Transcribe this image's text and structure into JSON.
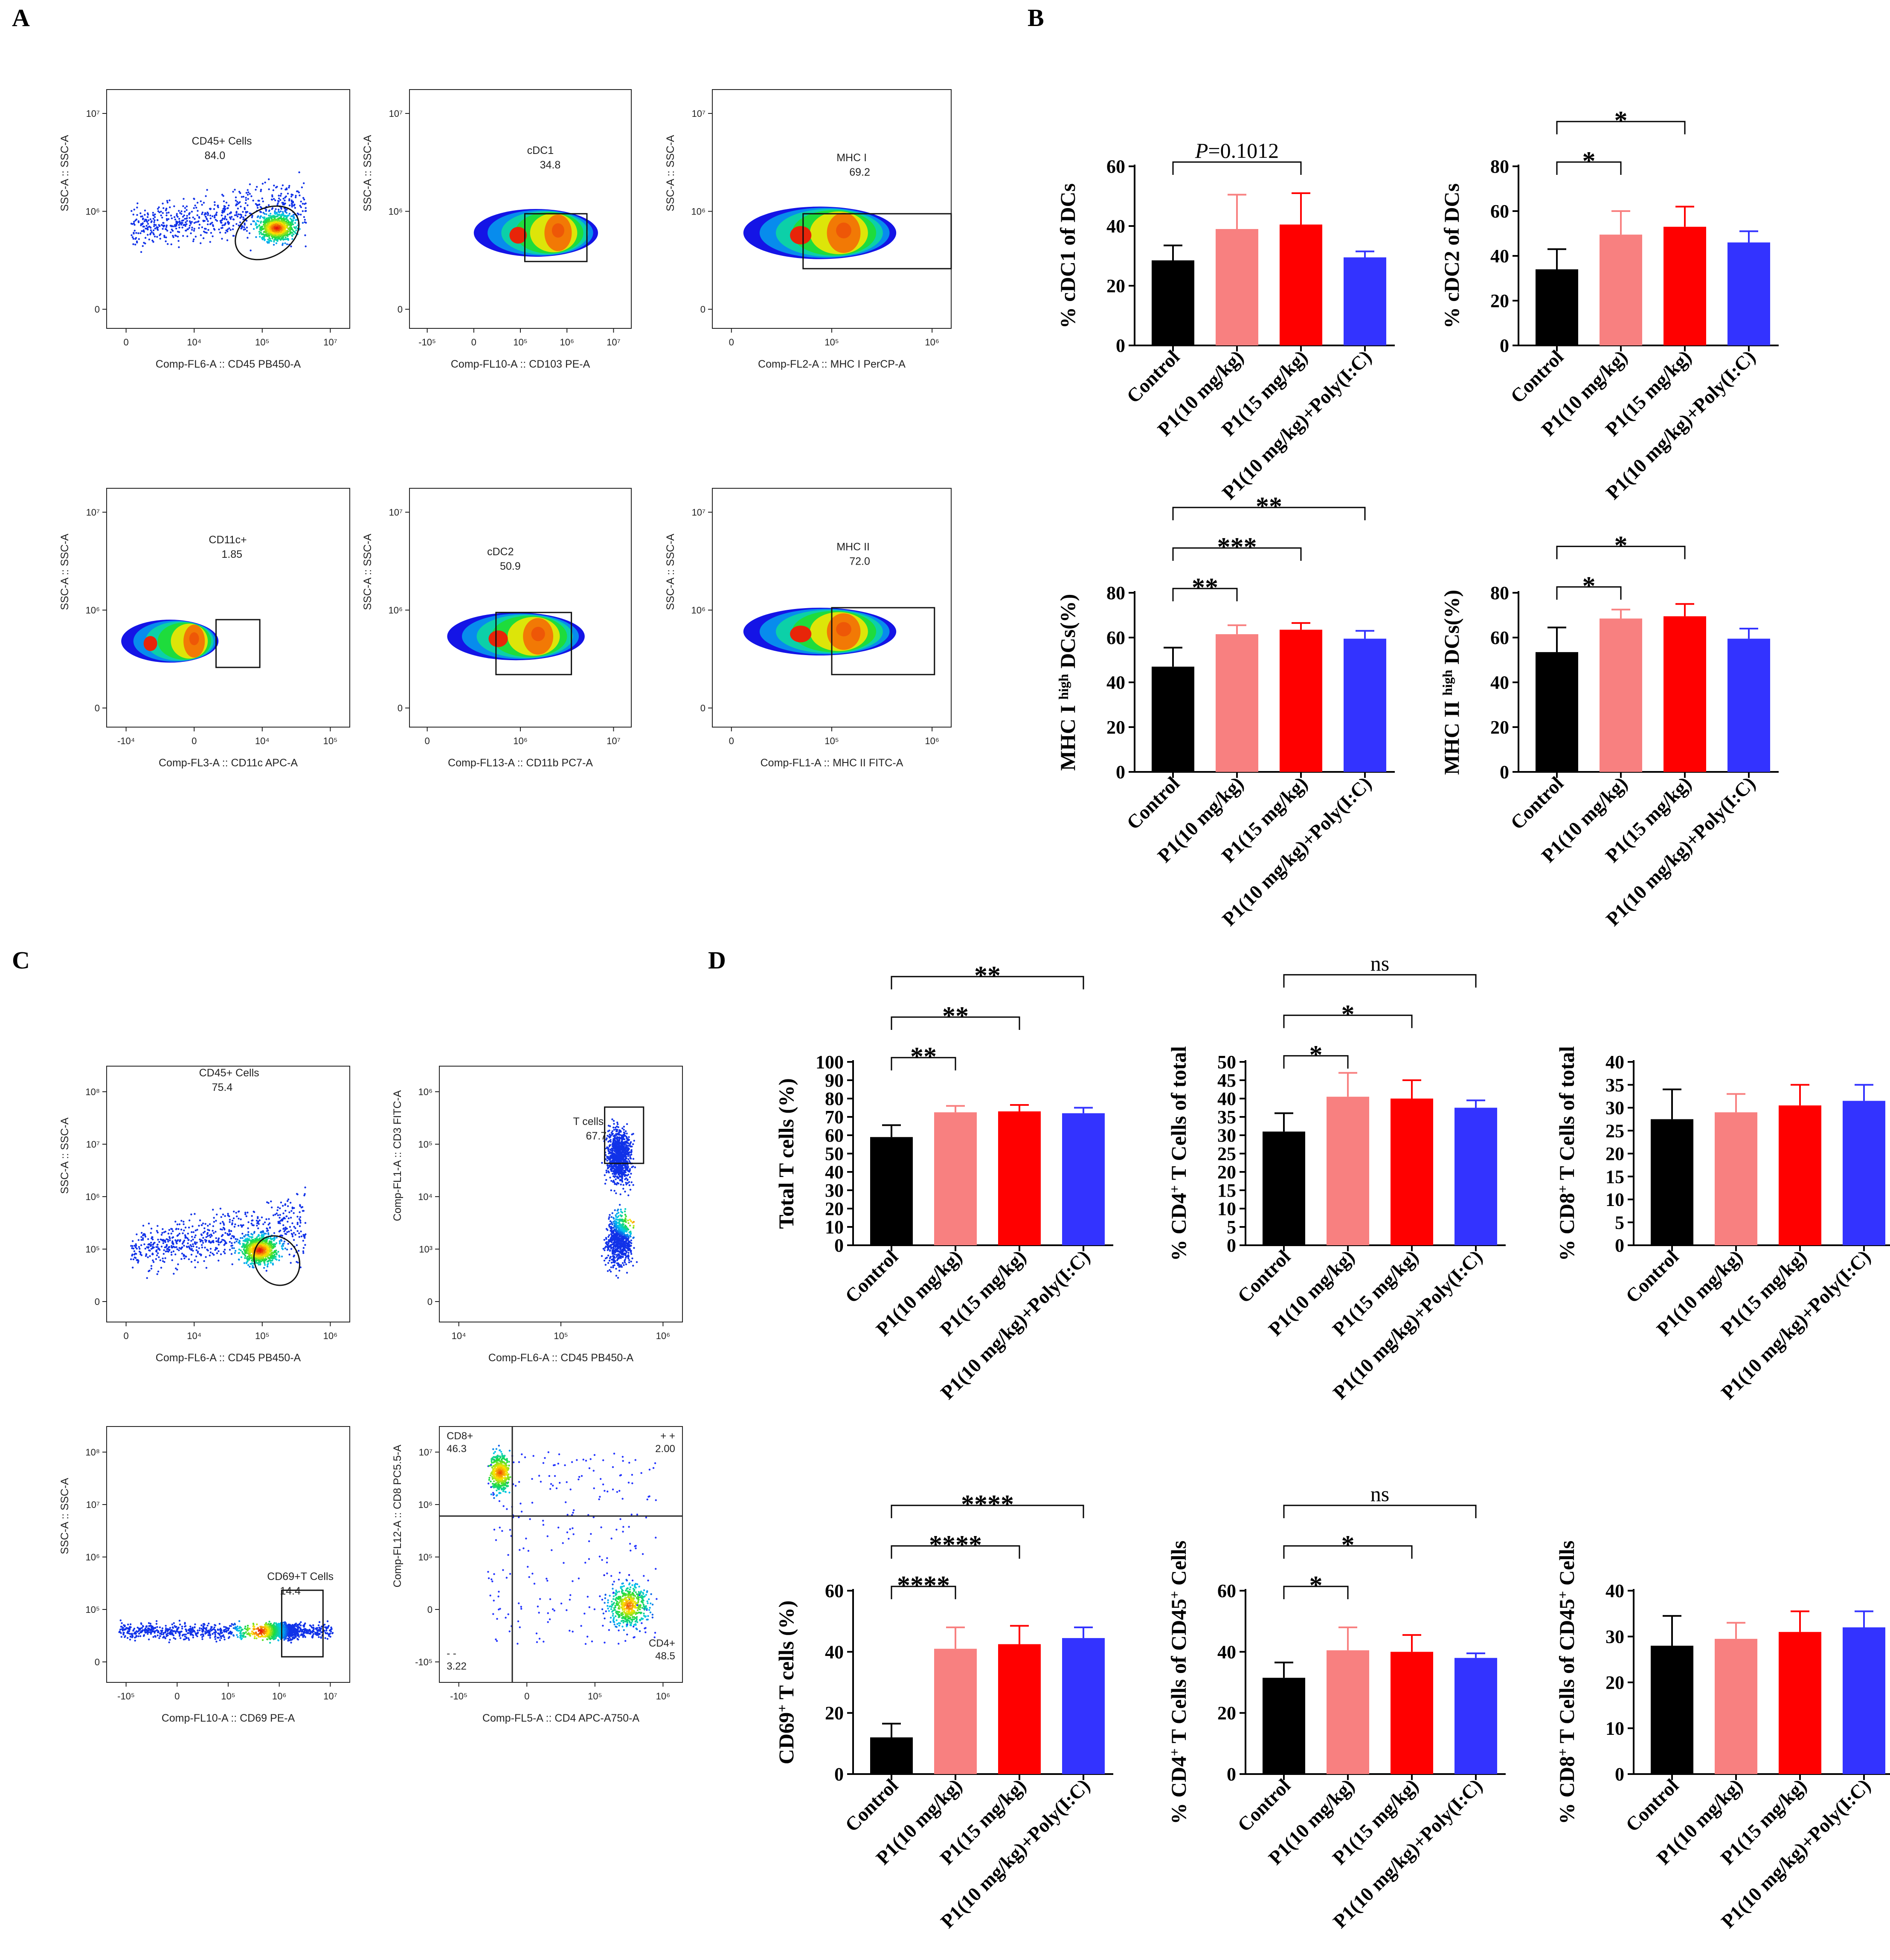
{
  "panels": {
    "a": "A",
    "b": "B",
    "c": "C",
    "d": "D"
  },
  "colors": {
    "control": "#000000",
    "p1_10": "#f88080",
    "p1_15": "#ff0000",
    "combo": "#3333ff"
  },
  "flow_panels": [
    {
      "id": "a1",
      "gate_label": "CD45+ Cells",
      "gate_value": "84.0",
      "xlabel": "Comp-FL6-A :: CD45 PB450-A",
      "ylabel": "SSC-A :: SSC-A",
      "xticks": [
        "0",
        "10⁴",
        "10⁵",
        "10⁷"
      ],
      "yticks": [
        "10⁷",
        "10⁶",
        "0"
      ]
    },
    {
      "id": "a2",
      "gate_label": "cDC1",
      "gate_value": "34.8",
      "xlabel": "Comp-FL10-A :: CD103 PE-A",
      "ylabel": "SSC-A :: SSC-A",
      "xticks": [
        "-10⁵",
        "0",
        "10⁵",
        "10⁶",
        "10⁷"
      ],
      "yticks": [
        "10⁷",
        "10⁶",
        "0"
      ]
    },
    {
      "id": "a3",
      "gate_label": "MHC I",
      "gate_value": "69.2",
      "xlabel": "Comp-FL2-A :: MHC I PerCP-A",
      "ylabel": "SSC-A :: SSC-A",
      "xticks": [
        "0",
        "10⁵",
        "10⁶"
      ],
      "yticks": [
        "10⁷",
        "10⁶",
        "0"
      ]
    },
    {
      "id": "a4",
      "gate_label": "CD11c+",
      "gate_value": "1.85",
      "xlabel": "Comp-FL3-A :: CD11c APC-A",
      "ylabel": "SSC-A :: SSC-A",
      "xticks": [
        "-10⁴",
        "0",
        "10⁴",
        "10⁵"
      ],
      "yticks": [
        "10⁷",
        "10⁶",
        "0"
      ]
    },
    {
      "id": "a5",
      "gate_label": "cDC2",
      "gate_value": "50.9",
      "xlabel": "Comp-FL13-A :: CD11b PC7-A",
      "ylabel": "SSC-A :: SSC-A",
      "xticks": [
        "0",
        "10⁶",
        "10⁷"
      ],
      "yticks": [
        "10⁷",
        "10⁶",
        "0"
      ]
    },
    {
      "id": "a6",
      "gate_label": "MHC II",
      "gate_value": "72.0",
      "xlabel": "Comp-FL1-A :: MHC II FITC-A",
      "ylabel": "SSC-A :: SSC-A",
      "xticks": [
        "0",
        "10⁵",
        "10⁶"
      ],
      "yticks": [
        "10⁷",
        "10⁶",
        "0"
      ]
    },
    {
      "id": "c1",
      "gate_label": "CD45+ Cells",
      "gate_value": "75.4",
      "xlabel": "Comp-FL6-A :: CD45 PB450-A",
      "ylabel": "SSC-A :: SSC-A",
      "xticks": [
        "0",
        "10⁴",
        "10⁵",
        "10⁶"
      ],
      "yticks": [
        "10⁸",
        "10⁷",
        "10⁶",
        "10⁵",
        "0"
      ]
    },
    {
      "id": "c2",
      "gate_label": "T cells",
      "gate_value": "67.7",
      "xlabel": "Comp-FL6-A :: CD45 PB450-A",
      "ylabel": "Comp-FL1-A :: CD3 FITC-A",
      "xticks": [
        "10⁴",
        "10⁵",
        "10⁶"
      ],
      "yticks": [
        "10⁶",
        "10⁵",
        "10⁴",
        "10³",
        "0"
      ]
    },
    {
      "id": "c3",
      "gate_label": "CD69+T Cells",
      "gate_value": "14.4",
      "xlabel": "Comp-FL10-A :: CD69 PE-A",
      "ylabel": "SSC-A :: SSC-A",
      "xticks": [
        "-10⁵",
        "0",
        "10⁵",
        "10⁶",
        "10⁷"
      ],
      "yticks": [
        "10⁸",
        "10⁷",
        "10⁶",
        "10⁵",
        "0"
      ]
    },
    {
      "id": "c4",
      "xlabel": "Comp-FL5-A :: CD4 APC-A750-A",
      "ylabel": "Comp-FL12-A :: CD8 PC5.5-A",
      "xticks": [
        "-10⁵",
        "0",
        "10⁵",
        "10⁶"
      ],
      "yticks": [
        "10⁷",
        "10⁶",
        "10⁵",
        "0",
        "-10⁵"
      ],
      "quadrants": [
        {
          "label": "CD8+",
          "value": "46.3"
        },
        {
          "label": "+ +",
          "value": "2.00"
        },
        {
          "label": "- -",
          "value": "3.22"
        },
        {
          "label": "CD4+",
          "value": "48.5"
        }
      ]
    }
  ],
  "chart_data": [
    {
      "type": "bar",
      "id": "b1",
      "ylabel": "% cDC1 of DCs",
      "ylim": [
        0,
        60
      ],
      "yticks": [
        0,
        20,
        40,
        60
      ],
      "categories": [
        "Control",
        "P1(10 mg/kg)",
        "P1(15 mg/kg)",
        "P1(10 mg/kg)+Poly(I:C)"
      ],
      "values": [
        28.5,
        39,
        40.5,
        29.5
      ],
      "errors": [
        5,
        11.5,
        10.5,
        2
      ],
      "significance": [
        {
          "from": 0,
          "to": 2,
          "label": "=0.1012",
          "prefix": "P"
        }
      ]
    },
    {
      "type": "bar",
      "id": "b2",
      "ylabel": "% cDC2 of DCs",
      "ylim": [
        0,
        80
      ],
      "yticks": [
        0,
        20,
        40,
        60,
        80
      ],
      "categories": [
        "Control",
        "P1(10 mg/kg)",
        "P1(15 mg/kg)",
        "P1(10 mg/kg)+Poly(I:C)"
      ],
      "values": [
        34,
        49.5,
        53,
        46
      ],
      "errors": [
        9,
        10.5,
        9,
        5
      ],
      "significance": [
        {
          "from": 0,
          "to": 1,
          "label": "*"
        },
        {
          "from": 0,
          "to": 2,
          "label": "*"
        }
      ]
    },
    {
      "type": "bar",
      "id": "b3",
      "ylabel": "MHC I high DCs(%)",
      "ylabel_main": "MHC I",
      "ylabel_sup": "high",
      "ylabel_end": "DCs(%)",
      "ylim": [
        0,
        80
      ],
      "yticks": [
        0,
        20,
        40,
        60,
        80
      ],
      "categories": [
        "Control",
        "P1(10 mg/kg)",
        "P1(15 mg/kg)",
        "P1(10 mg/kg)+Poly(I:C)"
      ],
      "values": [
        47,
        61.5,
        63.5,
        59.5
      ],
      "errors": [
        8.5,
        4,
        3,
        3.5
      ],
      "significance": [
        {
          "from": 0,
          "to": 1,
          "label": "**"
        },
        {
          "from": 0,
          "to": 2,
          "label": "***"
        },
        {
          "from": 0,
          "to": 3,
          "label": "**"
        }
      ]
    },
    {
      "type": "bar",
      "id": "b4",
      "ylabel": "MHC II high DCs(%)",
      "ylabel_main": "MHC II",
      "ylabel_sup": "high",
      "ylabel_end": "DCs(%)",
      "ylim": [
        0,
        80
      ],
      "yticks": [
        0,
        20,
        40,
        60,
        80
      ],
      "categories": [
        "Control",
        "P1(10 mg/kg)",
        "P1(15 mg/kg)",
        "P1(10 mg/kg)+Poly(I:C)"
      ],
      "values": [
        53.5,
        68.5,
        69.5,
        59.5
      ],
      "errors": [
        11,
        4,
        5.5,
        4.5
      ],
      "significance": [
        {
          "from": 0,
          "to": 1,
          "label": "*"
        },
        {
          "from": 0,
          "to": 2,
          "label": "*"
        }
      ]
    },
    {
      "type": "bar",
      "id": "d1",
      "ylabel": "Total T cells (%)",
      "ylim": [
        0,
        100
      ],
      "yticks": [
        0,
        10,
        20,
        30,
        40,
        50,
        60,
        70,
        80,
        90,
        100
      ],
      "categories": [
        "Control",
        "P1(10 mg/kg)",
        "P1(15 mg/kg)",
        "P1(10 mg/kg)+Poly(I:C)"
      ],
      "values": [
        59,
        72.5,
        73,
        72
      ],
      "errors": [
        6.5,
        3.5,
        3.5,
        3
      ],
      "significance": [
        {
          "from": 0,
          "to": 1,
          "label": "**"
        },
        {
          "from": 0,
          "to": 2,
          "label": "**"
        },
        {
          "from": 0,
          "to": 3,
          "label": "**"
        }
      ]
    },
    {
      "type": "bar",
      "id": "d2",
      "ylabel": "% CD4+ T Cells of total",
      "ylabel_pre": "% CD4",
      "ylabel_sup": "+",
      "ylabel_end": " T Cells of total",
      "ylim": [
        0,
        50
      ],
      "yticks": [
        0,
        5,
        10,
        15,
        20,
        25,
        30,
        35,
        40,
        45,
        50
      ],
      "categories": [
        "Control",
        "P1(10 mg/kg)",
        "P1(15 mg/kg)",
        "P1(10 mg/kg)+Poly(I:C)"
      ],
      "values": [
        31,
        40.5,
        40,
        37.5
      ],
      "errors": [
        5,
        6.5,
        5,
        2
      ],
      "significance": [
        {
          "from": 0,
          "to": 1,
          "label": "*"
        },
        {
          "from": 0,
          "to": 2,
          "label": "*"
        },
        {
          "from": 0,
          "to": 3,
          "label": "ns"
        }
      ]
    },
    {
      "type": "bar",
      "id": "d3",
      "ylabel": "% CD8+ T Cells of total",
      "ylabel_pre": "% CD8",
      "ylabel_sup": "+",
      "ylabel_end": " T Cells of total",
      "ylim": [
        0,
        40
      ],
      "yticks": [
        0,
        5,
        10,
        15,
        20,
        25,
        30,
        35,
        40
      ],
      "categories": [
        "Control",
        "P1(10 mg/kg)",
        "P1(15 mg/kg)",
        "P1(10 mg/kg)+Poly(I:C)"
      ],
      "values": [
        27.5,
        29,
        30.5,
        31.5
      ],
      "errors": [
        6.5,
        4,
        4.5,
        3.5
      ],
      "significance": []
    },
    {
      "type": "bar",
      "id": "d4",
      "ylabel": "CD69+ T cells (%)",
      "ylabel_pre": "CD69",
      "ylabel_sup": "+",
      "ylabel_end": "  T cells (%)",
      "ylim": [
        0,
        60
      ],
      "yticks": [
        0,
        20,
        40,
        60
      ],
      "categories": [
        "Control",
        "P1(10 mg/kg)",
        "P1(15 mg/kg)",
        "P1(10 mg/kg)+Poly(I:C)"
      ],
      "values": [
        12,
        41,
        42.5,
        44.5
      ],
      "errors": [
        4.5,
        7,
        6,
        3.5
      ],
      "significance": [
        {
          "from": 0,
          "to": 1,
          "label": "****"
        },
        {
          "from": 0,
          "to": 2,
          "label": "****"
        },
        {
          "from": 0,
          "to": 3,
          "label": "****"
        }
      ]
    },
    {
      "type": "bar",
      "id": "d5",
      "ylabel": "% CD4+ T Cells of CD45+ Cells",
      "ylabel_pre": "% CD4",
      "ylabel_sup": "+",
      "ylabel_mid": " T Cells of CD45",
      "ylabel_sup2": "+",
      "ylabel_end": " Cells",
      "ylim": [
        0,
        60
      ],
      "yticks": [
        0,
        20,
        40,
        60
      ],
      "categories": [
        "Control",
        "P1(10 mg/kg)",
        "P1(15 mg/kg)",
        "P1(10 mg/kg)+Poly(I:C)"
      ],
      "values": [
        31.5,
        40.5,
        40,
        38
      ],
      "errors": [
        5,
        7.5,
        5.5,
        1.5
      ],
      "significance": [
        {
          "from": 0,
          "to": 1,
          "label": "*"
        },
        {
          "from": 0,
          "to": 2,
          "label": "*"
        },
        {
          "from": 0,
          "to": 3,
          "label": "ns"
        }
      ]
    },
    {
      "type": "bar",
      "id": "d6",
      "ylabel": "% CD8+ T Cells of CD45+ Cells",
      "ylabel_pre": "% CD8",
      "ylabel_sup": "+",
      "ylabel_mid": " T Cells of CD45",
      "ylabel_sup2": "+",
      "ylabel_end": " Cells",
      "ylim": [
        0,
        40
      ],
      "yticks": [
        0,
        10,
        20,
        30,
        40
      ],
      "categories": [
        "Control",
        "P1(10 mg/kg)",
        "P1(15 mg/kg)",
        "P1(10 mg/kg)+Poly(I:C)"
      ],
      "values": [
        28,
        29.5,
        31,
        32
      ],
      "errors": [
        6.5,
        3.5,
        4.5,
        3.5
      ],
      "significance": []
    }
  ]
}
